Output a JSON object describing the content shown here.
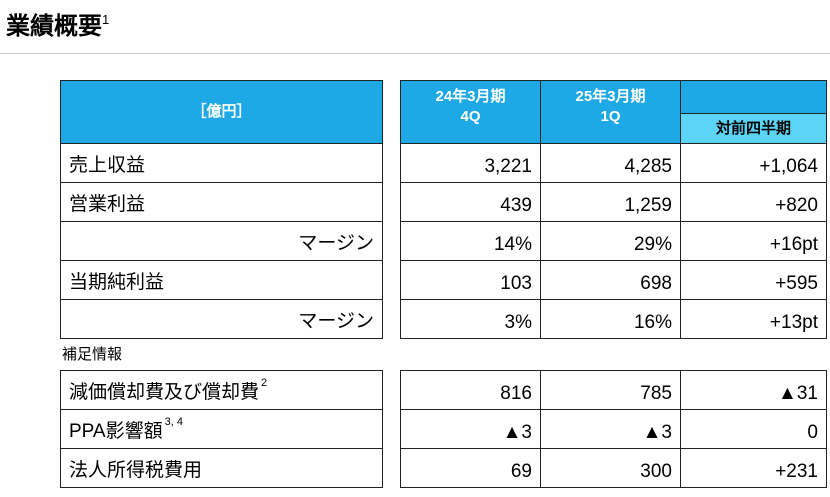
{
  "header": {
    "title": "業績概要",
    "title_sup": "1"
  },
  "table": {
    "unit": "［億円］",
    "columns": [
      {
        "line1": "24年3月期",
        "line2": "4Q"
      },
      {
        "line1": "25年3月期",
        "line2": "1Q"
      }
    ],
    "change_header": "対前四半期",
    "rows": [
      {
        "label": "売上収益",
        "values": [
          "3,221",
          "4,285",
          "+1,064"
        ]
      },
      {
        "label": "営業利益",
        "values": [
          "439",
          "1,259",
          "+820"
        ]
      },
      {
        "label": "マージン",
        "values": [
          "14%",
          "29%",
          "+16pt"
        ]
      },
      {
        "label": "当期純利益",
        "values": [
          "103",
          "698",
          "+595"
        ]
      },
      {
        "label": "マージン",
        "values": [
          "3%",
          "16%",
          "+13pt"
        ]
      }
    ],
    "note": "補足情報",
    "supplement_rows": [
      {
        "label": "減価償却費及び償却費",
        "sup": "2",
        "values": [
          "816",
          "785",
          "▲31"
        ]
      },
      {
        "label": "PPA影響額",
        "sup": "3, 4",
        "values": [
          "▲3",
          "▲3",
          "0"
        ]
      },
      {
        "label": "法人所得税費用",
        "values": [
          "69",
          "300",
          "+231"
        ]
      }
    ]
  }
}
